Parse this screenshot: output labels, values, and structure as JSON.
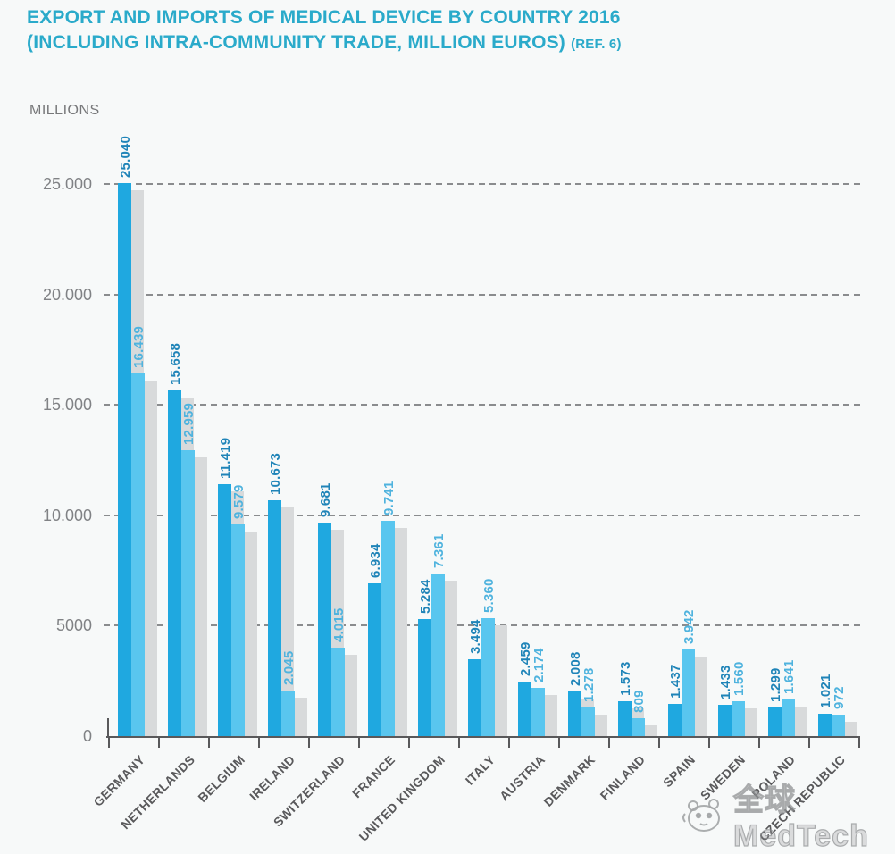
{
  "title": {
    "line1": "EXPORT AND IMPORTS OF MEDICAL DEVICE BY COUNTRY 2016",
    "line2": "(INCLUDING INTRA-COMMUNITY TRADE, MILLION EUROS)",
    "ref": "(REF. 6)"
  },
  "unit_label": "MILLIONS",
  "watermark": {
    "icon": "panda-logo-icon",
    "text": "全球MedTech"
  },
  "colors": {
    "title": "#2AAACA",
    "export_bar": "#1FA8E0",
    "import_bar": "#59C6EF",
    "bar_shadow": "#D8DADB",
    "export_value_label": "#1F84B8",
    "import_value_label": "#4FB3DE",
    "axis": "#59595B",
    "grid": "#8A8C8E",
    "ytick_label": "#808285",
    "xlabel": "#59595B",
    "background": "#F7F9F9"
  },
  "chart_data": {
    "type": "bar",
    "title": "EXPORT AND IMPORTS OF MEDICAL DEVICE BY COUNTRY 2016 (INCLUDING INTRA-COMMUNITY TRADE, MILLION EUROS) (REF. 6)",
    "ylabel": "MILLIONS",
    "xlabel": "",
    "ylim": [
      0,
      25000
    ],
    "grid": "horizontal-dashed",
    "legend_position": "none",
    "bar_style": "paired bars with gray drop shadow, value labels rotated 90deg above bars, category labels rotated 45deg",
    "categories": [
      "GERMANY",
      "NETHERLANDS",
      "BELGIUM",
      "IRELAND",
      "SWITZERLAND",
      "FRANCE",
      "UNITED KINGDOM",
      "ITALY",
      "AUSTRIA",
      "DENMARK",
      "FINLAND",
      "SPAIN",
      "SWEDEN",
      "POLAND",
      "CZECH REPUBLIC"
    ],
    "series": [
      {
        "name": "Exports",
        "values": [
          25040,
          15658,
          11419,
          10673,
          9681,
          6934,
          5284,
          3494,
          2459,
          2008,
          1573,
          1437,
          1433,
          1299,
          1021
        ],
        "labels": [
          "25.040",
          "15.658",
          "11.419",
          "10.673",
          "9.681",
          "6.934",
          "5.284",
          "3.494",
          "2.459",
          "2.008",
          "1.573",
          "1.437",
          "1.433",
          "1.299",
          "1.021"
        ]
      },
      {
        "name": "Imports",
        "values": [
          16439,
          12959,
          9579,
          2045,
          4015,
          9741,
          7361,
          5360,
          2174,
          1278,
          809,
          3942,
          1560,
          1641,
          972
        ],
        "labels": [
          "16.439",
          "12.959",
          "9.579",
          "2.045",
          "4.015",
          "9.741",
          "7.361",
          "5.360",
          "2.174",
          "1.278",
          "809",
          "3.942",
          "1.560",
          "1.641",
          "972"
        ]
      }
    ],
    "yticks": [
      {
        "value": 0,
        "label": "0"
      },
      {
        "value": 5000,
        "label": "5000"
      },
      {
        "value": 10000,
        "label": "10.000"
      },
      {
        "value": 15000,
        "label": "15.000"
      },
      {
        "value": 20000,
        "label": "20.000"
      },
      {
        "value": 25000,
        "label": "25.000"
      }
    ]
  }
}
